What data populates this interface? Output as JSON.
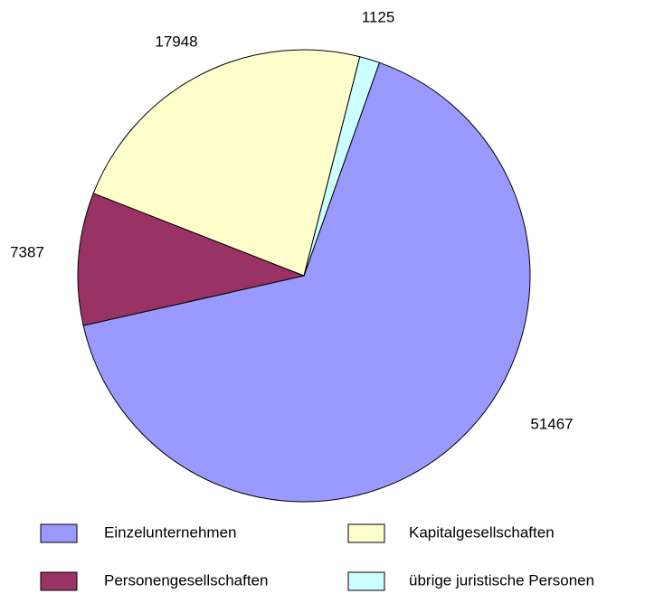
{
  "chart_data": {
    "type": "pie",
    "categories": [
      "Einzelunternehmen",
      "Personengesellschaften",
      "Kapitalgesellschaften",
      "übrige juristische Personen"
    ],
    "values": [
      51467,
      7387,
      17948,
      1125
    ],
    "colors": [
      "#9999ff",
      "#993366",
      "#ffffcc",
      "#ccffff"
    ]
  }
}
